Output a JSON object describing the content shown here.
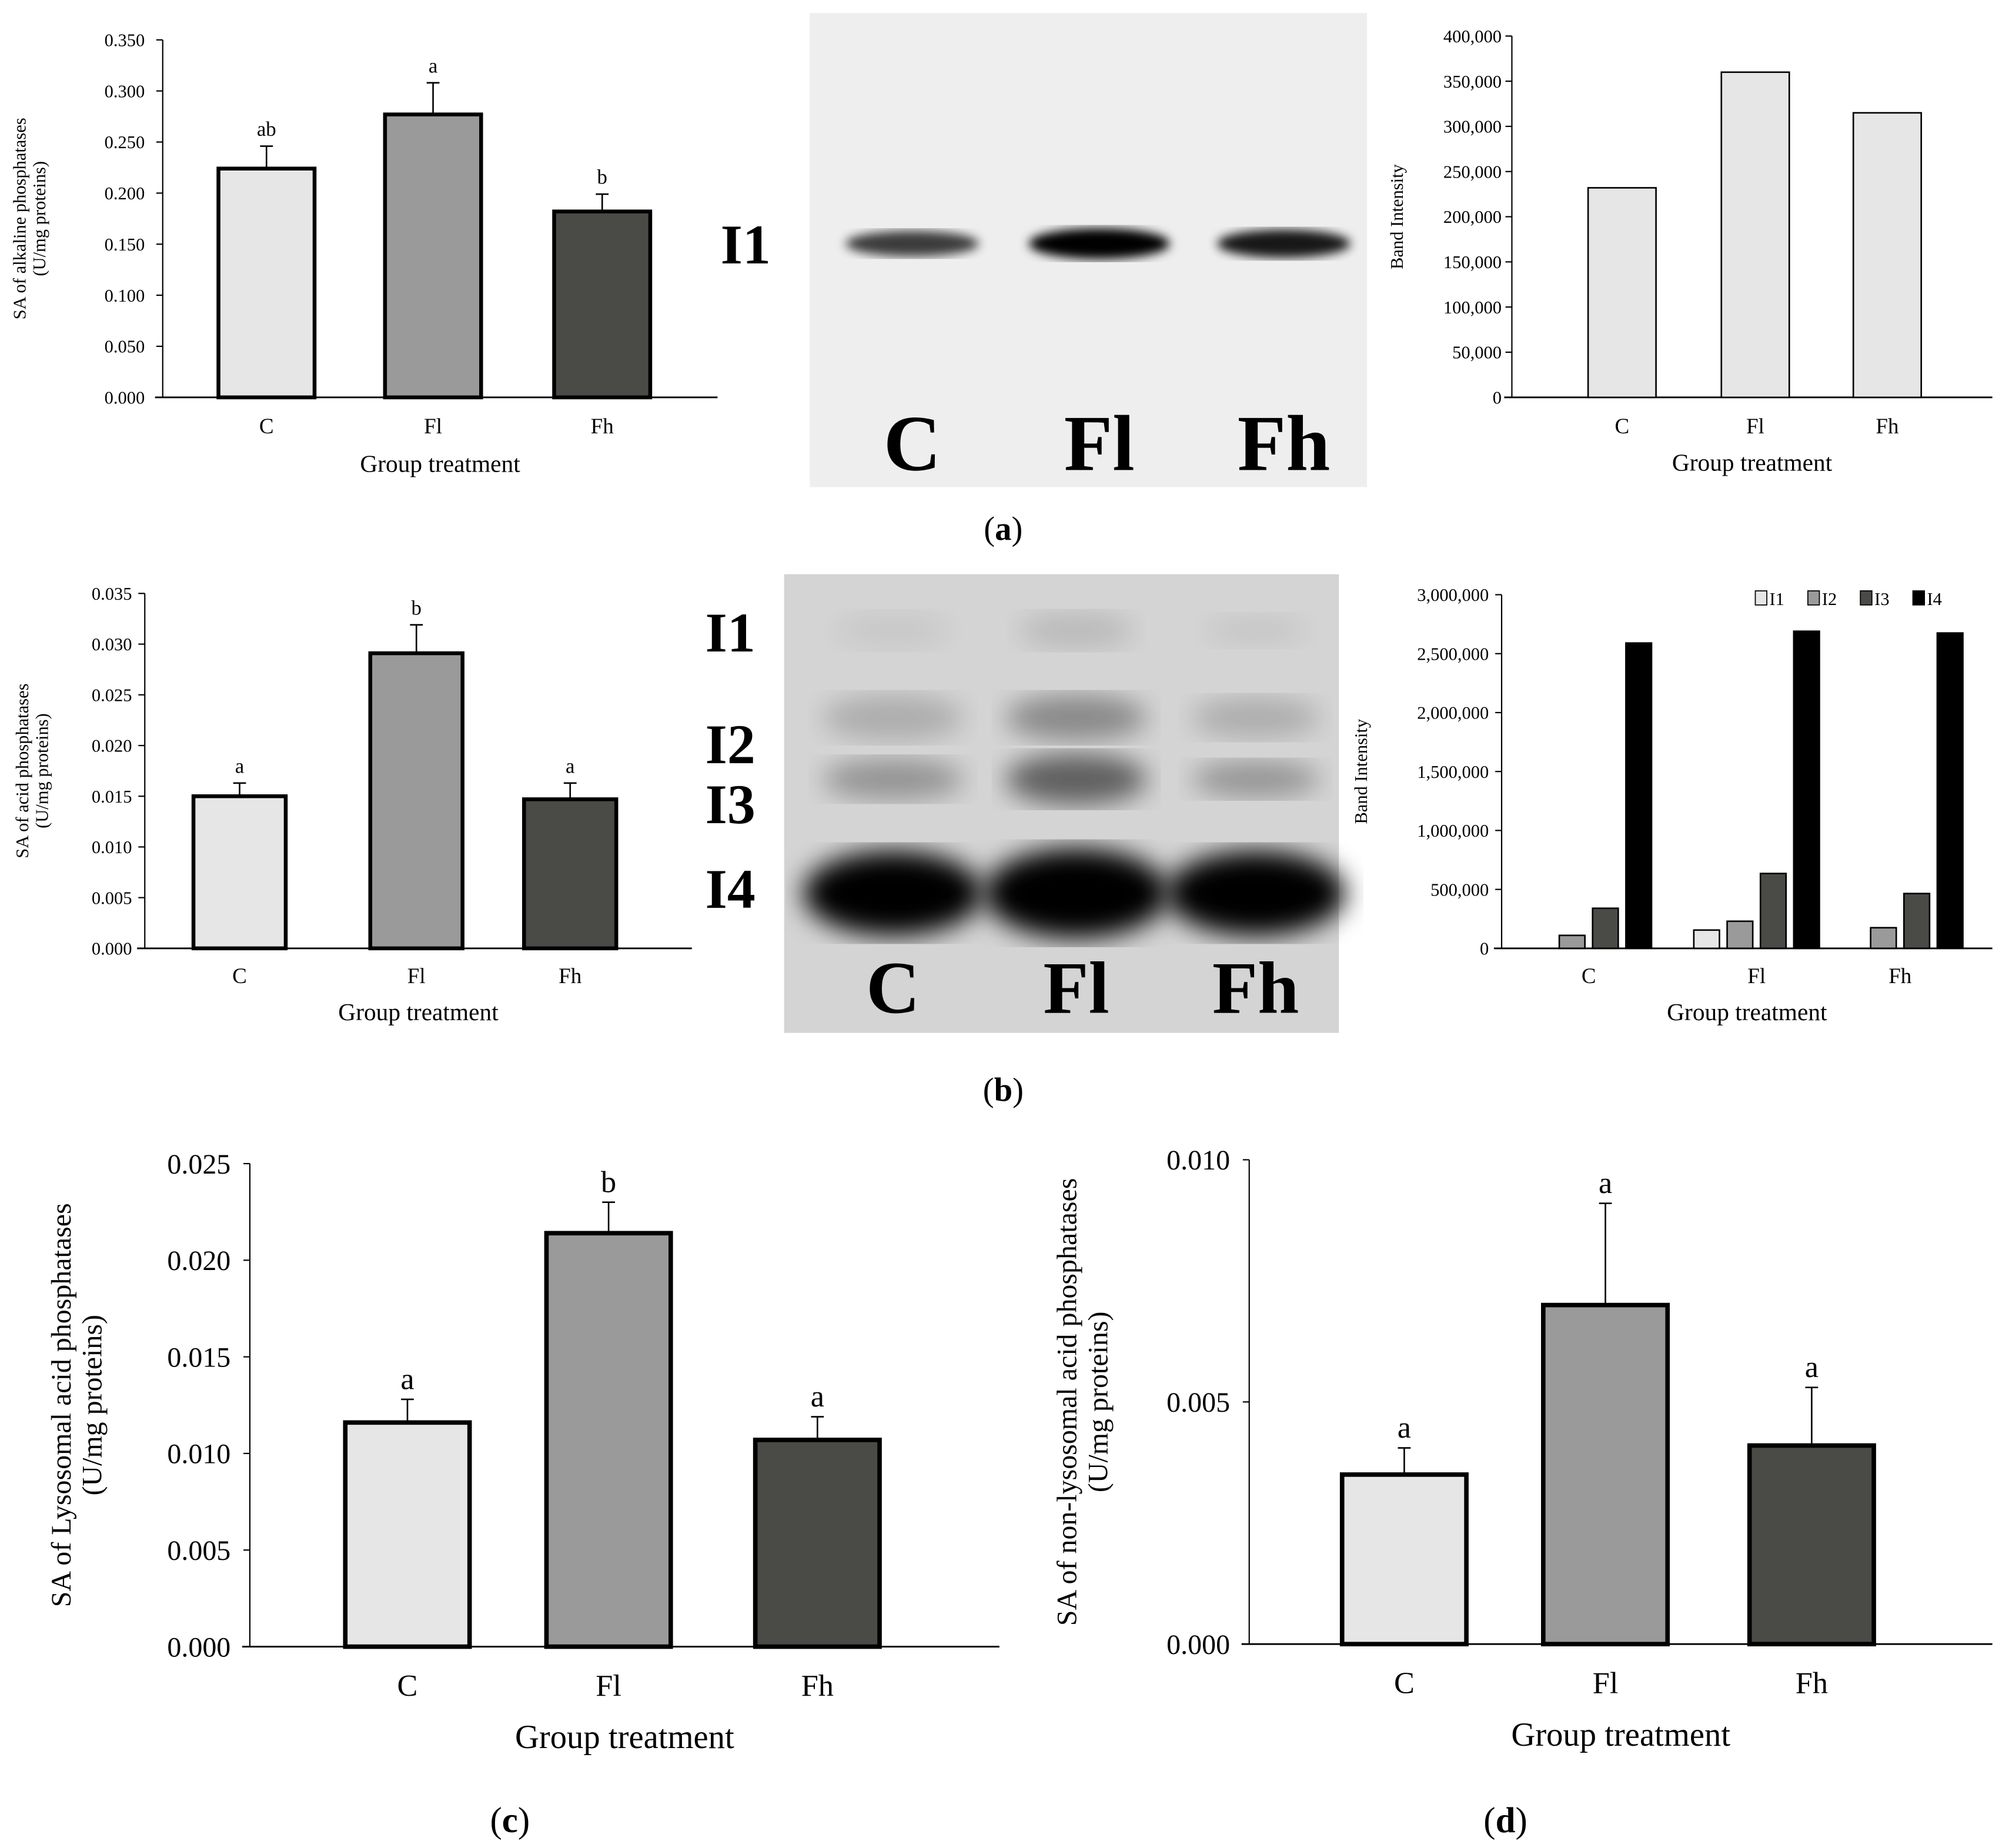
{
  "panel_labels": [
    "a",
    "b",
    "c",
    "d"
  ],
  "gels": [
    {
      "lanes": [
        "C",
        "Fl",
        "Fh"
      ],
      "bands": [
        "I1"
      ]
    },
    {
      "lanes": [
        "C",
        "Fl",
        "Fh"
      ],
      "bands": [
        "I1",
        "I2",
        "I3",
        "I4"
      ]
    }
  ],
  "chart_data": [
    {
      "type": "bar",
      "categories": [
        "C",
        "Fl",
        "Fh"
      ],
      "values": [
        0.224,
        0.277,
        0.182
      ],
      "errors": [
        0.022,
        0.031,
        0.017
      ],
      "letters": [
        "ab",
        "a",
        "b"
      ],
      "xlabel": "Group treatment",
      "ylabel": [
        "SA of alkaline phosphatases",
        "(U/mg proteins)"
      ],
      "ylim": [
        0,
        0.35
      ],
      "ystep": 0.05,
      "tick_decimals": 3,
      "colors": [
        "#e6e6e6",
        "#9a9a9a",
        "#4a4a47"
      ]
    },
    {
      "type": "bar",
      "categories": [
        "C",
        "Fl",
        "Fh"
      ],
      "values": [
        232000,
        360000,
        315000
      ],
      "xlabel": "Group treatment",
      "ylabel": [
        "Band Intensity"
      ],
      "ylim": [
        0,
        400000
      ],
      "ystep": 50000,
      "tick_format": "thousands",
      "colors": [
        "#e6e6e6",
        "#e6e6e6",
        "#e6e6e6"
      ]
    },
    {
      "type": "bar",
      "categories": [
        "C",
        "Fl",
        "Fh"
      ],
      "values": [
        0.015,
        0.0291,
        0.0147
      ],
      "errors": [
        0.0013,
        0.0028,
        0.0016
      ],
      "letters": [
        "a",
        "b",
        "a"
      ],
      "xlabel": "Group treatment",
      "ylabel": [
        "SA of acid phosphatases",
        "(U/mg proteins)"
      ],
      "ylim": [
        0,
        0.035
      ],
      "ystep": 0.005,
      "tick_decimals": 3,
      "colors": [
        "#e6e6e6",
        "#9a9a9a",
        "#4a4a47"
      ]
    },
    {
      "type": "bar",
      "categories": [
        "C",
        "Fl",
        "Fh"
      ],
      "series": [
        {
          "name": "I1",
          "values": [
            0,
            155000,
            0
          ],
          "color": "#e6e6e6"
        },
        {
          "name": "I2",
          "values": [
            110000,
            230000,
            175000
          ],
          "color": "#9a9a9a"
        },
        {
          "name": "I3",
          "values": [
            340000,
            635000,
            465000
          ],
          "color": "#4a4a47"
        },
        {
          "name": "I4",
          "values": [
            2590000,
            2690000,
            2675000
          ],
          "color": "#000000"
        }
      ],
      "legend": "top-right",
      "xlabel": "Group treatment",
      "ylabel": [
        "Band Intensity"
      ],
      "ylim": [
        0,
        3000000
      ],
      "ystep": 500000,
      "tick_format": "thousands"
    },
    {
      "type": "bar",
      "categories": [
        "C",
        "Fl",
        "Fh"
      ],
      "values": [
        0.0116,
        0.0214,
        0.0107
      ],
      "errors": [
        0.0012,
        0.0016,
        0.0012
      ],
      "letters": [
        "a",
        "b",
        "a"
      ],
      "xlabel": "Group treatment",
      "ylabel": [
        "SA of Lysosomal acid phosphatases",
        "(U/mg proteins)"
      ],
      "ylim": [
        0,
        0.025
      ],
      "ystep": 0.005,
      "tick_decimals": 3,
      "colors": [
        "#e6e6e6",
        "#9a9a9a",
        "#4a4a47"
      ]
    },
    {
      "type": "bar",
      "categories": [
        "C",
        "Fl",
        "Fh"
      ],
      "values": [
        0.0035,
        0.007,
        0.0041
      ],
      "errors": [
        0.00055,
        0.0021,
        0.0012
      ],
      "letters": [
        "a",
        "a",
        "a"
      ],
      "xlabel": "Group treatment",
      "ylabel": [
        "SA of non-lysosomal acid phosphatases",
        "(U/mg proteins)"
      ],
      "ylim": [
        0,
        0.01
      ],
      "ystep": 0.005,
      "tick_decimals": 3,
      "colors": [
        "#e6e6e6",
        "#9a9a9a",
        "#4a4a47"
      ]
    }
  ]
}
